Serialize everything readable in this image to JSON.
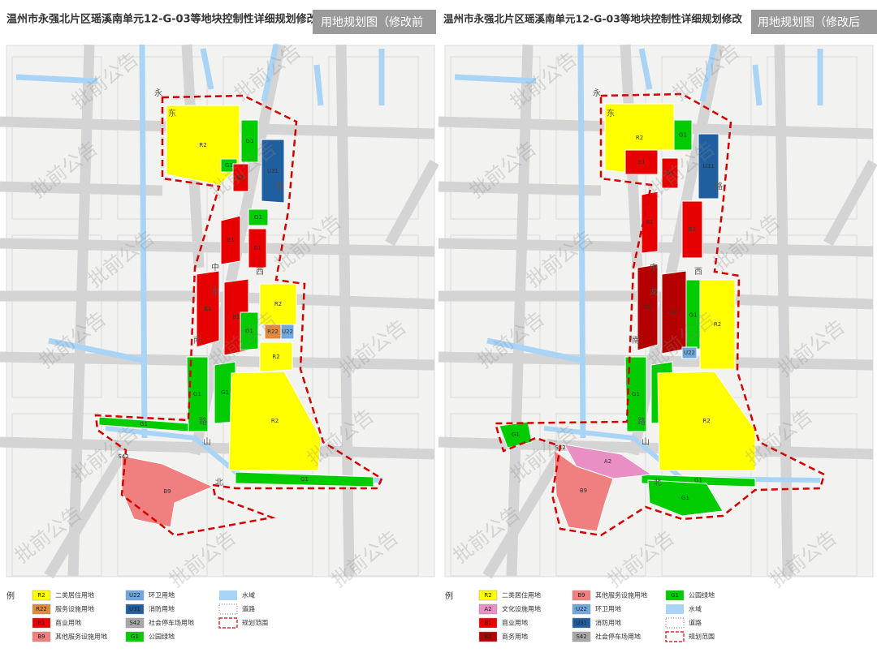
{
  "watermark": "批前公告",
  "panels": [
    {
      "title": "温州市永强北片区瑶溪南单元12-G-03等地块控制性详细规划修改",
      "subtitle": "用地规划图（修改前",
      "legend_heading": "例",
      "streets": [
        "永",
        "东",
        "路",
        "中",
        "西",
        "龙",
        "南",
        "路",
        "山",
        "北"
      ],
      "parcels": [
        {
          "label": "R2"
        },
        {
          "label": "G1"
        },
        {
          "label": "G1"
        },
        {
          "label": "B1"
        },
        {
          "label": "U31"
        },
        {
          "label": "G1"
        },
        {
          "label": "B1"
        },
        {
          "label": "B1"
        },
        {
          "label": "B1"
        },
        {
          "label": "B1"
        },
        {
          "label": "G1"
        },
        {
          "label": "R2"
        },
        {
          "label": "R22"
        },
        {
          "label": "U22"
        },
        {
          "label": "R2"
        },
        {
          "label": "G1"
        },
        {
          "label": "G1"
        },
        {
          "label": "R2"
        },
        {
          "label": "G1"
        },
        {
          "label": "G1"
        },
        {
          "label": "B9"
        },
        {
          "label": "S42"
        }
      ],
      "legend": [
        {
          "code": "R2",
          "name": "二类居住用地",
          "color": "#ffff00"
        },
        {
          "code": "R22",
          "name": "服务设施用地",
          "color": "#e08a3c"
        },
        {
          "code": "B1",
          "name": "商业用地",
          "color": "#e60000"
        },
        {
          "code": "B9",
          "name": "其他服务设施用地",
          "color": "#f08080"
        },
        {
          "code": "U22",
          "name": "环卫用地",
          "color": "#6fa8dc"
        },
        {
          "code": "U31",
          "name": "消防用地",
          "color": "#1f5fa0"
        },
        {
          "code": "S42",
          "name": "社会停车场用地",
          "color": "#a8a8a8"
        },
        {
          "code": "G1",
          "name": "公园绿地",
          "color": "#00cc00"
        },
        {
          "name": "水域",
          "color": "#a9d4f5",
          "style": "fill"
        },
        {
          "name": "道路",
          "color": "#999999",
          "style": "dotted"
        },
        {
          "name": "规划范围",
          "color": "#d40000",
          "style": "dashed"
        }
      ]
    },
    {
      "title": "温州市永强北片区瑶溪南单元12-G-03等地块控制性详细规划修改",
      "subtitle": "用地规划图（修改后",
      "legend_heading": "例",
      "streets": [
        "永",
        "东",
        "路",
        "中",
        "西",
        "龙",
        "南",
        "路",
        "山",
        "北"
      ],
      "parcels": [
        {
          "label": "R2"
        },
        {
          "label": "B1"
        },
        {
          "label": "B1"
        },
        {
          "label": "G1"
        },
        {
          "label": "U31"
        },
        {
          "label": "B1"
        },
        {
          "label": "B1"
        },
        {
          "label": "B2"
        },
        {
          "label": "B2"
        },
        {
          "label": "G1"
        },
        {
          "label": "R2"
        },
        {
          "label": "U22"
        },
        {
          "label": "G1"
        },
        {
          "label": "G1"
        },
        {
          "label": "R2"
        },
        {
          "label": "G1"
        },
        {
          "label": "G1"
        },
        {
          "label": "G1"
        },
        {
          "label": "A2"
        },
        {
          "label": "B9"
        },
        {
          "label": "S42"
        }
      ],
      "legend": [
        {
          "code": "R2",
          "name": "二类居住用地",
          "color": "#ffff00"
        },
        {
          "code": "A2",
          "name": "文化设施用地",
          "color": "#e98fc6"
        },
        {
          "code": "B1",
          "name": "商业用地",
          "color": "#e60000"
        },
        {
          "code": "B2",
          "name": "商务用地",
          "color": "#b50000"
        },
        {
          "code": "B9",
          "name": "其他服务设施用地",
          "color": "#f08080"
        },
        {
          "code": "U22",
          "name": "环卫用地",
          "color": "#6fa8dc"
        },
        {
          "code": "U31",
          "name": "消防用地",
          "color": "#1f5fa0"
        },
        {
          "code": "S42",
          "name": "社会停车场用地",
          "color": "#a8a8a8"
        },
        {
          "code": "G1",
          "name": "公园绿地",
          "color": "#00cc00"
        },
        {
          "name": "水域",
          "color": "#a9d4f5",
          "style": "fill"
        },
        {
          "name": "道路",
          "color": "#999999",
          "style": "dotted"
        },
        {
          "name": "规划范围",
          "color": "#d40000",
          "style": "dashed"
        }
      ]
    }
  ]
}
